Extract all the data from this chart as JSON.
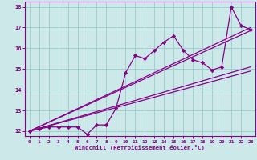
{
  "xlabel": "Windchill (Refroidissement éolien,°C)",
  "bg_color": "#cce8e8",
  "line_color": "#880088",
  "grid_color": "#99cccc",
  "axis_color": "#880088",
  "xlim": [
    -0.5,
    23.5
  ],
  "ylim": [
    11.75,
    18.25
  ],
  "yticks": [
    12,
    13,
    14,
    15,
    16,
    17,
    18
  ],
  "xticks": [
    0,
    1,
    2,
    3,
    4,
    5,
    6,
    7,
    8,
    9,
    10,
    11,
    12,
    13,
    14,
    15,
    16,
    17,
    18,
    19,
    20,
    21,
    22,
    23
  ],
  "data_x": [
    0,
    1,
    2,
    3,
    4,
    5,
    6,
    7,
    8,
    9,
    10,
    11,
    12,
    13,
    14,
    15,
    16,
    17,
    18,
    19,
    20,
    21,
    22,
    23
  ],
  "data_y": [
    12.0,
    12.1,
    12.2,
    12.2,
    12.2,
    12.2,
    11.85,
    12.3,
    12.3,
    13.1,
    14.8,
    15.65,
    15.5,
    15.9,
    16.3,
    16.6,
    15.9,
    15.45,
    15.3,
    14.95,
    15.1,
    18.0,
    17.1,
    16.9
  ],
  "line1_x": [
    0,
    23
  ],
  "line1_y": [
    12.0,
    14.9
  ],
  "line2_x": [
    0,
    23
  ],
  "line2_y": [
    12.0,
    15.1
  ],
  "line3_x": [
    0,
    23
  ],
  "line3_y": [
    12.0,
    16.85
  ],
  "line4_x": [
    0,
    23
  ],
  "line4_y": [
    12.0,
    17.0
  ]
}
